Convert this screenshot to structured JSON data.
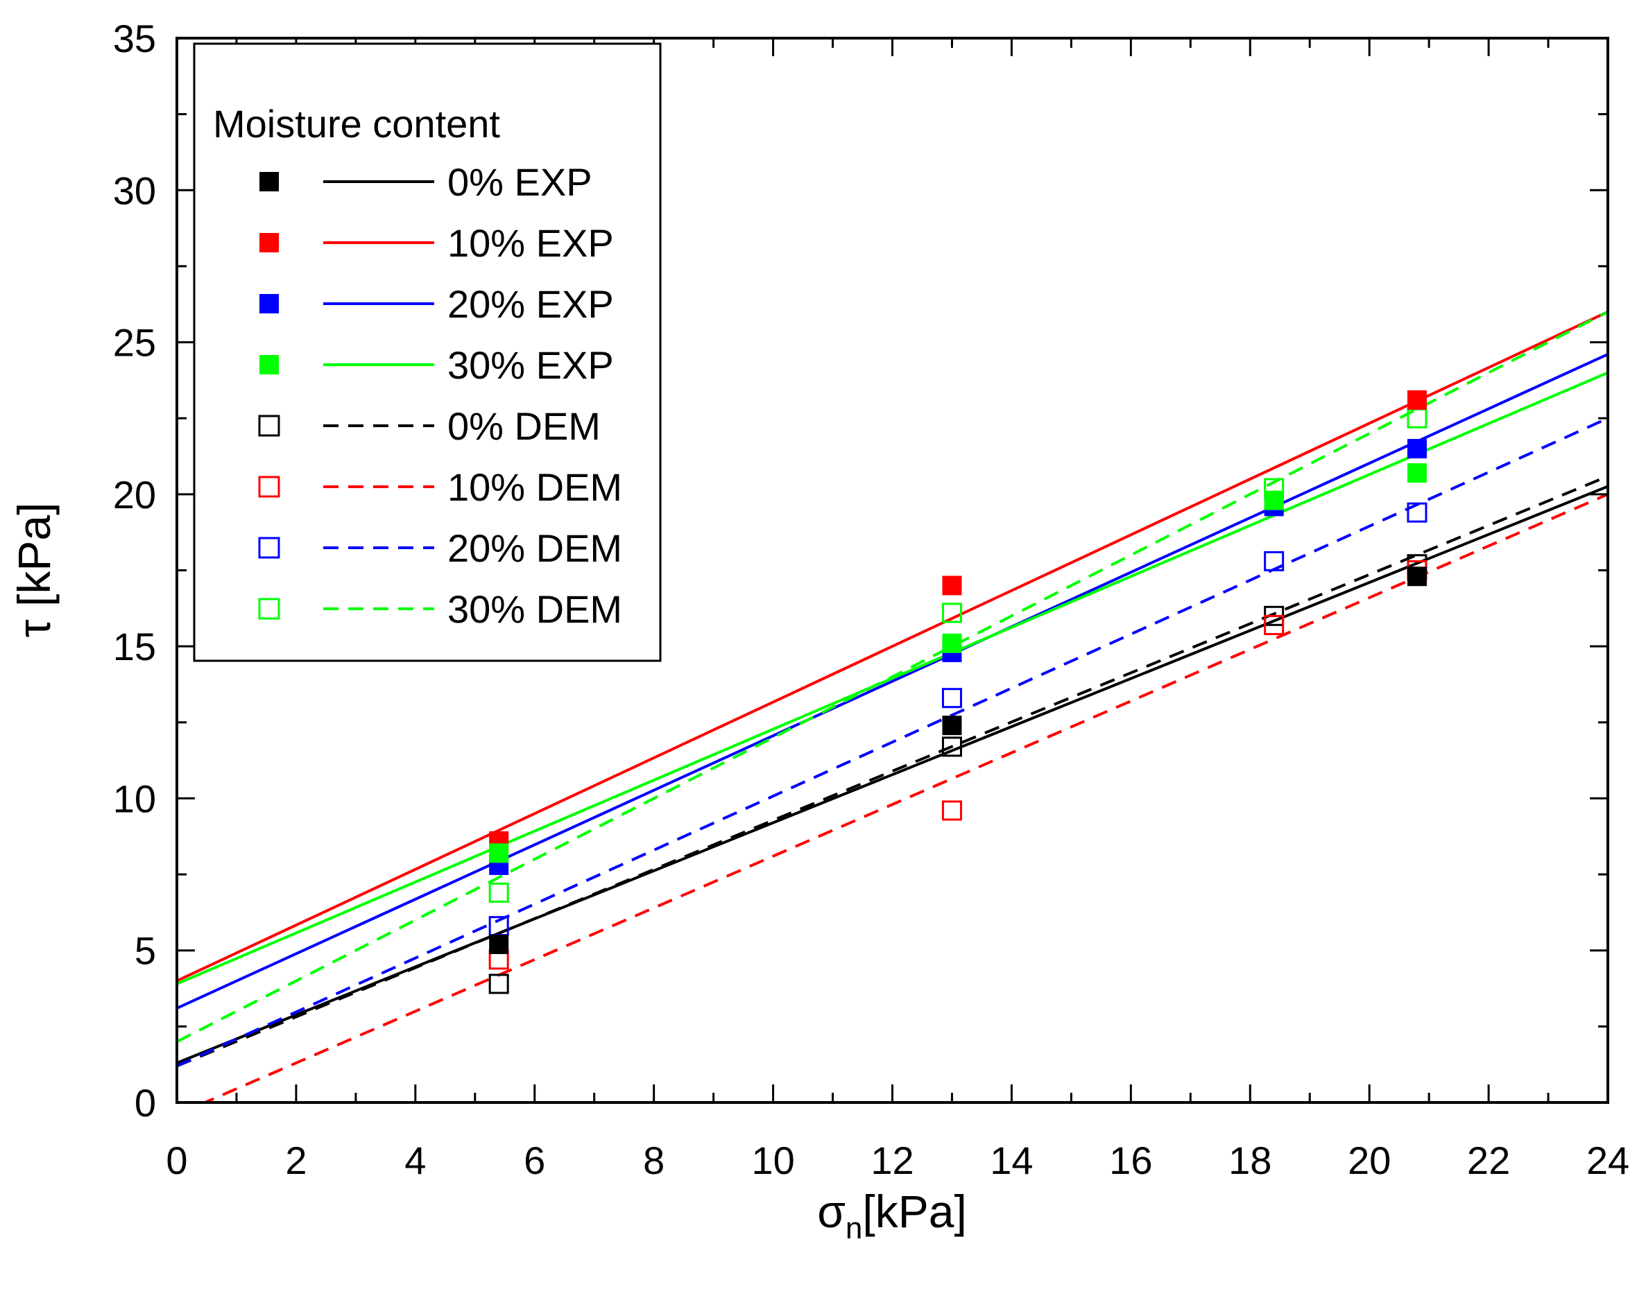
{
  "chart_data": {
    "type": "scatter",
    "title": "",
    "xlabel_main": "σ",
    "xlabel_sub": "n",
    "xlabel_unit": "[kPa]",
    "ylabel": "τ [kPa]",
    "xlim": [
      0,
      24
    ],
    "ylim": [
      0,
      35
    ],
    "x_ticks": [
      0,
      2,
      4,
      6,
      8,
      10,
      12,
      14,
      16,
      18,
      20,
      22,
      24
    ],
    "y_ticks": [
      0,
      5,
      10,
      15,
      20,
      25,
      30,
      35
    ],
    "grid": false,
    "legend_title": "Moisture content",
    "legend_position": "top-left",
    "series": [
      {
        "name": "0% EXP",
        "color": "#000000",
        "marker": "filled-square",
        "line": "solid",
        "x": [
          5.4,
          13.0,
          20.8
        ],
        "y": [
          5.2,
          12.4,
          17.3
        ],
        "fit": {
          "intercept": 1.3,
          "slope": 0.79
        }
      },
      {
        "name": "10% EXP",
        "color": "#ff0000",
        "marker": "filled-square",
        "line": "solid",
        "x": [
          5.4,
          13.0,
          20.8
        ],
        "y": [
          8.6,
          17.0,
          23.1
        ],
        "fit": {
          "intercept": 4.0,
          "slope": 0.9167
        }
      },
      {
        "name": "20% EXP",
        "color": "#0000ff",
        "marker": "filled-square",
        "line": "solid",
        "x": [
          5.4,
          13.0,
          18.4,
          20.8
        ],
        "y": [
          7.8,
          14.8,
          19.6,
          21.5
        ],
        "fit": {
          "intercept": 3.1,
          "slope": 0.896
        }
      },
      {
        "name": "30% EXP",
        "color": "#00ff00",
        "marker": "filled-square",
        "line": "solid",
        "x": [
          5.4,
          13.0,
          18.4,
          20.8
        ],
        "y": [
          8.2,
          15.1,
          19.8,
          20.7
        ],
        "fit": {
          "intercept": 3.9,
          "slope": 0.8375
        }
      },
      {
        "name": "0% DEM",
        "color": "#000000",
        "marker": "open-square",
        "line": "dashed",
        "x": [
          5.4,
          13.0,
          18.4,
          20.8
        ],
        "y": [
          3.9,
          11.7,
          16.0,
          17.7
        ],
        "fit": {
          "intercept": 1.2,
          "slope": 0.808
        }
      },
      {
        "name": "10% DEM",
        "color": "#ff0000",
        "marker": "open-square",
        "line": "dashed",
        "x": [
          5.4,
          13.0,
          18.4,
          20.8
        ],
        "y": [
          4.7,
          9.6,
          15.7,
          17.5
        ],
        "fit": {
          "intercept": -0.4,
          "slope": 0.85
        }
      },
      {
        "name": "20% DEM",
        "color": "#0000ff",
        "marker": "open-square",
        "line": "dashed",
        "x": [
          5.4,
          13.0,
          18.4,
          20.8
        ],
        "y": [
          5.8,
          13.3,
          17.8,
          19.4
        ],
        "fit": {
          "intercept": 1.2,
          "slope": 0.8875
        }
      },
      {
        "name": "30% DEM",
        "color": "#00ff00",
        "marker": "open-square",
        "line": "dashed",
        "x": [
          5.4,
          13.0,
          18.4,
          20.8
        ],
        "y": [
          6.9,
          16.1,
          20.2,
          22.5
        ],
        "fit": {
          "intercept": 2.0,
          "slope": 1.0
        }
      }
    ]
  }
}
